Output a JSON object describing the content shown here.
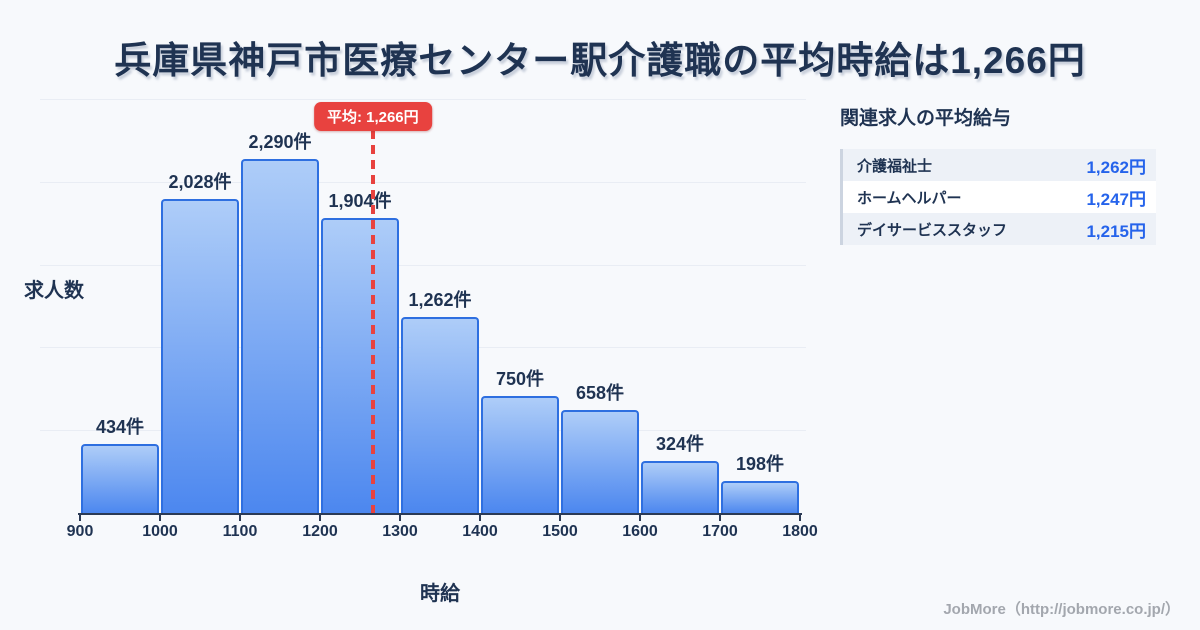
{
  "title": "兵庫県神戸市医療センター駅介護職の平均時給は1,266円",
  "chart_data": {
    "type": "bar",
    "categories": [
      "900-1000",
      "1000-1100",
      "1100-1200",
      "1200-1300",
      "1300-1400",
      "1400-1500",
      "1500-1600",
      "1600-1700",
      "1700-1800"
    ],
    "values": [
      434,
      2028,
      2290,
      1904,
      1262,
      750,
      658,
      324,
      198
    ],
    "bar_labels": [
      "434件",
      "2,028件",
      "2,290件",
      "1,904件",
      "1,262件",
      "750件",
      "658件",
      "324件",
      "198件"
    ],
    "x_tick_labels": [
      "900",
      "1000",
      "1100",
      "1200",
      "1300",
      "1400",
      "1500",
      "1600",
      "1700",
      "1800"
    ],
    "x_range": [
      900,
      1800
    ],
    "xlabel": "時給",
    "ylabel": "求人数",
    "unit": "件",
    "grid": true,
    "legend": "none",
    "average_line": {
      "value": 1266,
      "label": "平均: 1,266円"
    }
  },
  "related_panel": {
    "heading": "関連求人の平均給与",
    "rows": [
      {
        "name": "介護福祉士",
        "value": "1,262円"
      },
      {
        "name": "ホームヘルパー",
        "value": "1,247円"
      },
      {
        "name": "デイサービススタッフ",
        "value": "1,215円"
      }
    ]
  },
  "footer": {
    "credit": "JobMore（http://jobmore.co.jp/）"
  },
  "colors": {
    "background": "#f7f9fc",
    "title_navy": "#1f3352",
    "bar_gradient_top": "#aecdf8",
    "bar_gradient_bottom": "#4c87ef",
    "bar_border": "#2e6fe0",
    "average_red": "#e8423f",
    "value_blue": "#2563eb",
    "axis_dark": "#2b3a55"
  }
}
